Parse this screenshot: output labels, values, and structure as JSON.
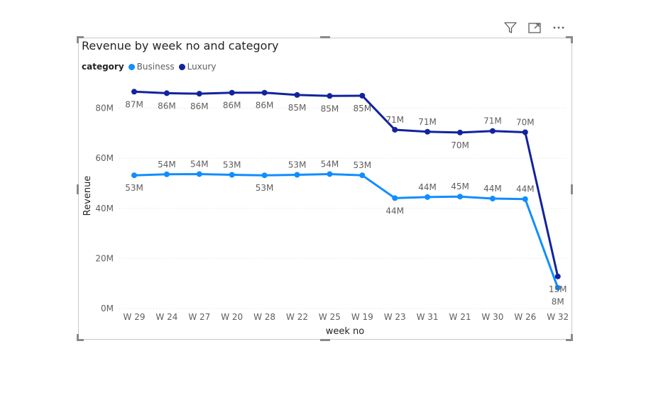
{
  "toolbar": {
    "filter_icon": "filter-icon",
    "focus_icon": "focus-mode-icon",
    "more_icon": "more-options-icon"
  },
  "colors": {
    "business": "#118dff",
    "luxury": "#12239e",
    "grid": "#d9d9d9",
    "axis_text": "#605e5c",
    "title_text": "#252423"
  },
  "chart_data": {
    "type": "line",
    "title": "Revenue by week no and category",
    "xlabel": "week no",
    "ylabel": "Revenue",
    "legend_title": "category",
    "legend_position": "top-left",
    "grid": true,
    "ylim": [
      0,
      80
    ],
    "yticks": [
      0,
      20,
      40,
      60,
      80
    ],
    "ytick_labels": [
      "0M",
      "20M",
      "40M",
      "60M",
      "80M"
    ],
    "categories": [
      "W 29",
      "W 24",
      "W 27",
      "W 20",
      "W 28",
      "W 22",
      "W 25",
      "W 19",
      "W 23",
      "W 31",
      "W 21",
      "W 30",
      "W 26",
      "W 32"
    ],
    "series": [
      {
        "name": "Business",
        "values": [
          53.2,
          53.6,
          53.7,
          53.4,
          53.2,
          53.4,
          53.7,
          53.2,
          44.1,
          44.5,
          44.7,
          43.9,
          43.7,
          8.3
        ],
        "labels": [
          "53M",
          "54M",
          "54M",
          "53M",
          "53M",
          "53M",
          "54M",
          "53M",
          "44M",
          "44M",
          "45M",
          "44M",
          "44M",
          "8M"
        ]
      },
      {
        "name": "Luxury",
        "values": [
          86.6,
          86.0,
          85.8,
          86.2,
          86.2,
          85.3,
          84.9,
          85.0,
          71.4,
          70.6,
          70.3,
          70.9,
          70.4,
          12.8
        ],
        "labels": [
          "87M",
          "86M",
          "86M",
          "86M",
          "86M",
          "85M",
          "85M",
          "85M",
          "71M",
          "71M",
          "70M",
          "71M",
          "70M",
          "13M"
        ]
      }
    ]
  }
}
